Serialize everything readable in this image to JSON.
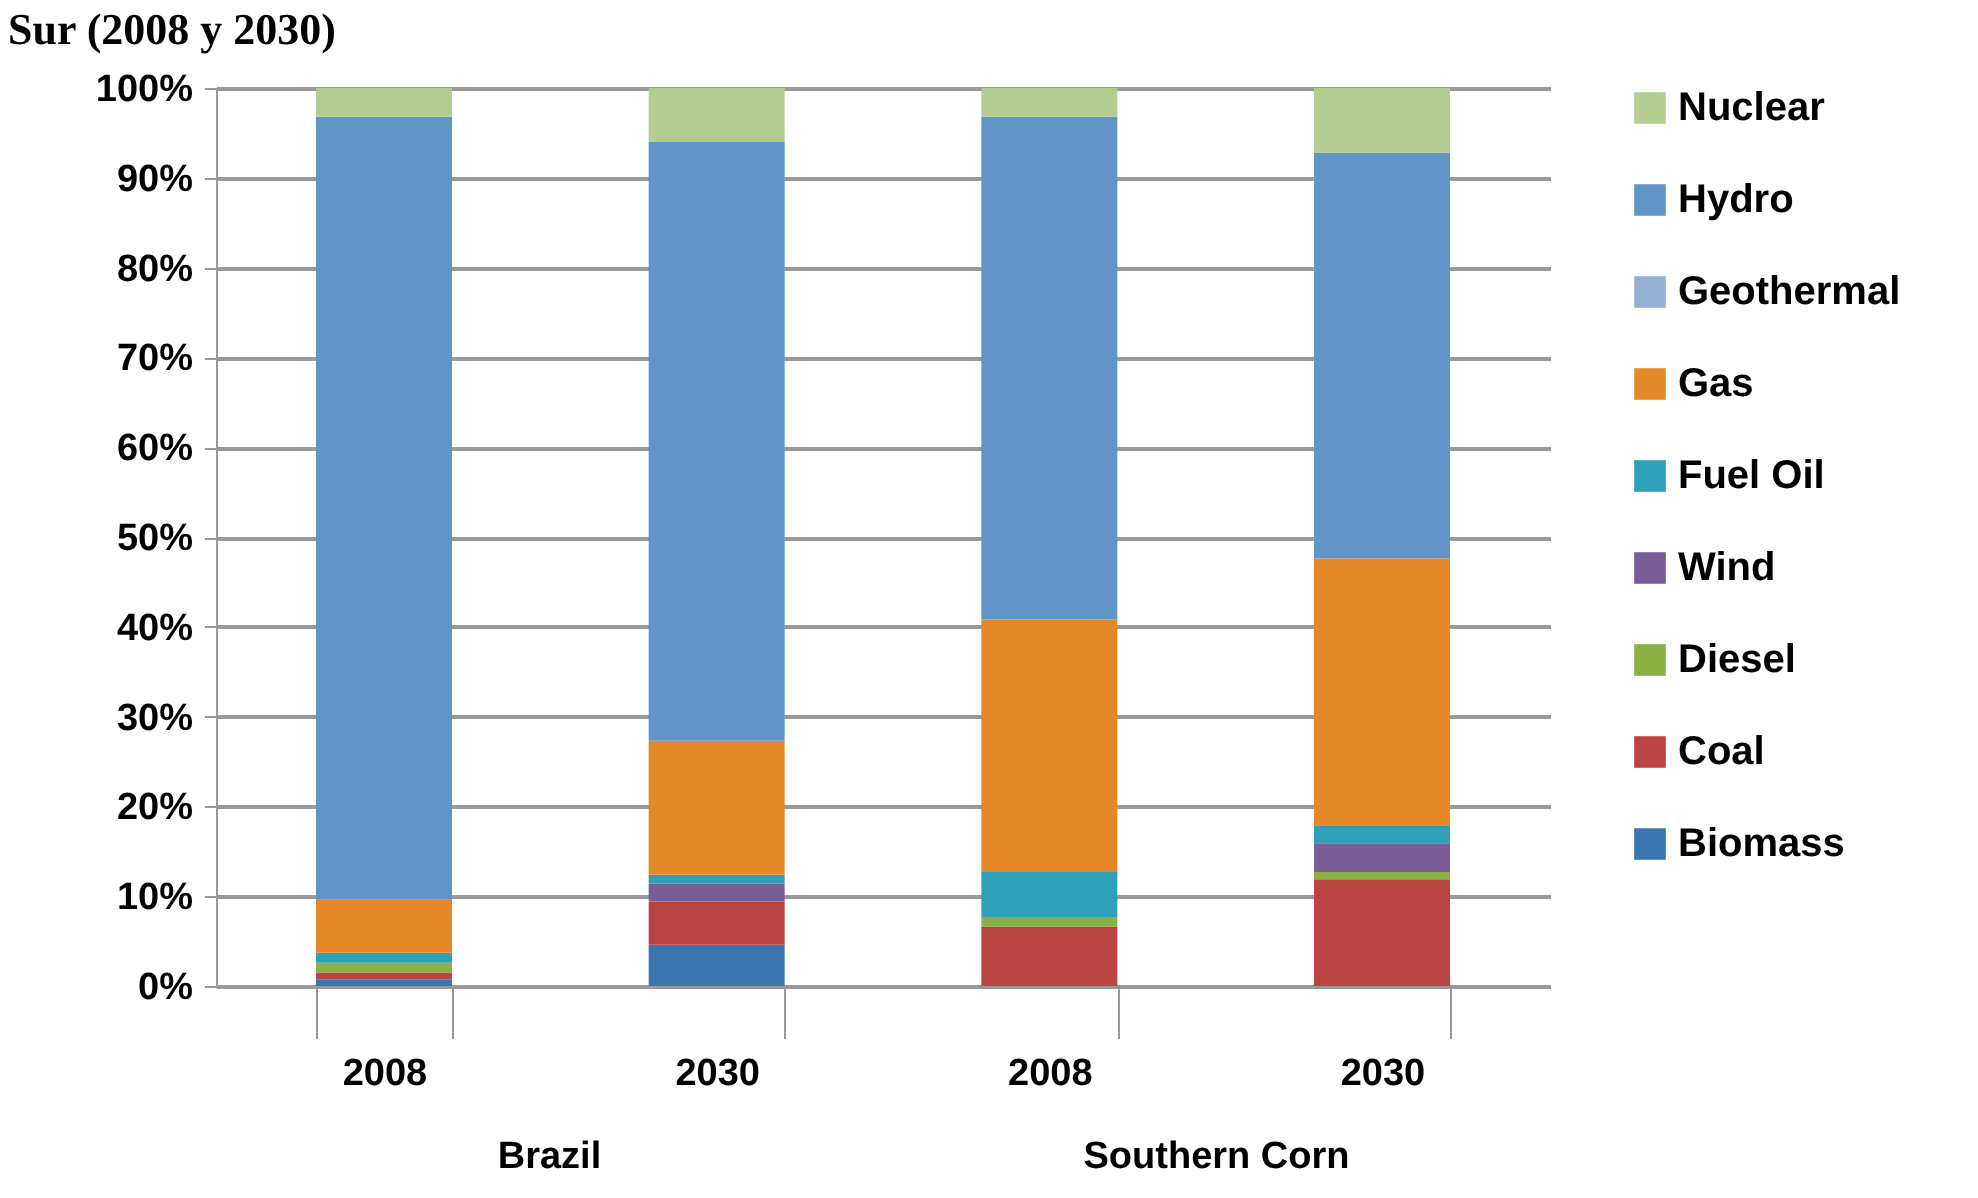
{
  "chart_data": {
    "type": "bar",
    "title": "Sur (2008 y 2030)",
    "stacked": true,
    "categories": [
      "2008",
      "2030",
      "2008",
      "2030"
    ],
    "annotations": [
      "Brazil",
      "Southern Corn"
    ],
    "ylim": [
      0,
      100
    ],
    "yticks": [
      {
        "value": 0,
        "label": "0%"
      },
      {
        "value": 10,
        "label": "10%"
      },
      {
        "value": 20,
        "label": "20%"
      },
      {
        "value": 30,
        "label": "30%"
      },
      {
        "value": 40,
        "label": "40%"
      },
      {
        "value": 50,
        "label": "50%"
      },
      {
        "value": 60,
        "label": "60%"
      },
      {
        "value": 70,
        "label": "70%"
      },
      {
        "value": 80,
        "label": "80%"
      },
      {
        "value": 90,
        "label": "90%"
      },
      {
        "value": 100,
        "label": "100%"
      }
    ],
    "grid": "y",
    "legend": "right",
    "series": [
      {
        "name": "Biomass",
        "color": "#3a75b0",
        "values": [
          0.7,
          4.6,
          0,
          0
        ]
      },
      {
        "name": "Coal",
        "color": "#b94441",
        "values": [
          0.8,
          4.8,
          6.6,
          11.9
        ]
      },
      {
        "name": "Diesel",
        "color": "#8db045",
        "values": [
          1.1,
          0,
          1.0,
          0.8
        ]
      },
      {
        "name": "Wind",
        "color": "#7a5c98",
        "values": [
          0,
          2.0,
          0,
          3.2
        ]
      },
      {
        "name": "Fuel Oil",
        "color": "#2ea0b8",
        "values": [
          1.1,
          1.0,
          5.1,
          2.0
        ]
      },
      {
        "name": "Gas",
        "color": "#e4882a",
        "values": [
          5.9,
          14.9,
          28.1,
          29.7
        ]
      },
      {
        "name": "Geothermal",
        "color": "#94afd4",
        "values": [
          0,
          0,
          0,
          0
        ]
      },
      {
        "name": "Hydro",
        "color": "#6195c8",
        "values": [
          87.2,
          66.7,
          56.0,
          45.2
        ]
      },
      {
        "name": "Nuclear",
        "color": "#b4cc90",
        "values": [
          3.2,
          6.0,
          3.2,
          7.2
        ]
      }
    ]
  }
}
